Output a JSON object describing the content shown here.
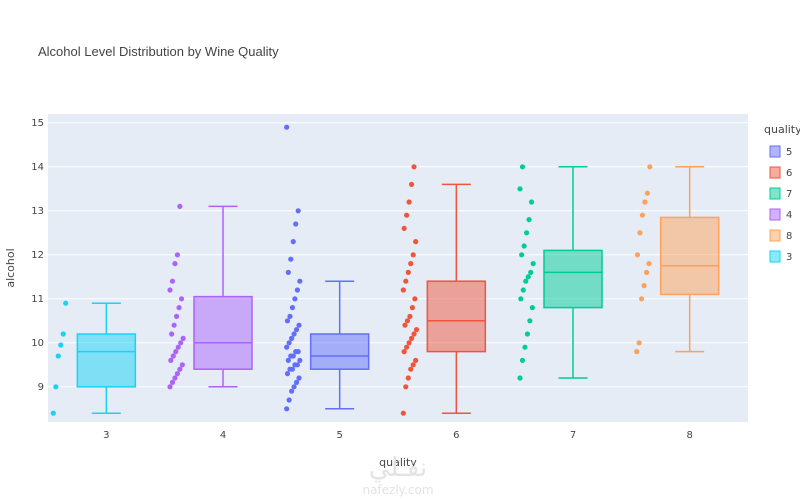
{
  "chart_data": {
    "type": "box",
    "title": "Alcohol Level Distribution by Wine Quality",
    "xlabel": "quality",
    "ylabel": "alcohol",
    "categories": [
      "3",
      "4",
      "5",
      "6",
      "7",
      "8"
    ],
    "ylim": [
      8.2,
      15.2
    ],
    "yticks": [
      9,
      10,
      11,
      12,
      13,
      14,
      15
    ],
    "grid": true,
    "legend": {
      "title": "quality",
      "position": "right",
      "entries": [
        "5",
        "6",
        "7",
        "4",
        "8",
        "3"
      ]
    },
    "series": [
      {
        "name": "3",
        "color": "#19d3f3",
        "min": 8.4,
        "q1": 9.0,
        "median": 9.8,
        "q3": 10.2,
        "max": 10.9,
        "points": [
          8.4,
          9.0,
          9.7,
          9.95,
          10.2,
          10.9
        ]
      },
      {
        "name": "4",
        "color": "#ab63fa",
        "min": 9.0,
        "q1": 9.4,
        "median": 10.0,
        "q3": 11.05,
        "max": 13.1,
        "points": [
          9.0,
          9.1,
          9.2,
          9.3,
          9.4,
          9.5,
          9.6,
          9.7,
          9.8,
          9.9,
          10.0,
          10.1,
          10.2,
          10.4,
          10.6,
          10.8,
          11.0,
          11.2,
          11.4,
          11.8,
          12.0,
          13.1
        ]
      },
      {
        "name": "5",
        "color": "#636efa",
        "min": 8.5,
        "q1": 9.4,
        "median": 9.7,
        "q3": 10.2,
        "max": 11.4,
        "points": [
          8.5,
          8.7,
          8.9,
          9.0,
          9.1,
          9.2,
          9.3,
          9.4,
          9.4,
          9.5,
          9.5,
          9.6,
          9.6,
          9.7,
          9.7,
          9.8,
          9.8,
          9.9,
          10.0,
          10.1,
          10.2,
          10.3,
          10.4,
          10.5,
          10.6,
          10.8,
          11.0,
          11.2,
          11.4,
          11.6,
          11.9,
          12.3,
          12.7,
          13.0,
          14.9
        ]
      },
      {
        "name": "6",
        "color": "#ef553b",
        "min": 8.4,
        "q1": 9.8,
        "median": 10.5,
        "q3": 11.4,
        "max": 13.6,
        "points": [
          8.4,
          9.0,
          9.2,
          9.4,
          9.5,
          9.6,
          9.8,
          9.9,
          10.0,
          10.1,
          10.2,
          10.3,
          10.4,
          10.5,
          10.6,
          10.8,
          11.0,
          11.2,
          11.4,
          11.6,
          11.8,
          12.0,
          12.3,
          12.6,
          12.9,
          13.2,
          13.6,
          14.0
        ]
      },
      {
        "name": "7",
        "color": "#00cc96",
        "min": 9.2,
        "q1": 10.8,
        "median": 11.6,
        "q3": 12.1,
        "max": 14.0,
        "points": [
          9.2,
          9.6,
          9.9,
          10.2,
          10.5,
          10.8,
          11.0,
          11.2,
          11.4,
          11.5,
          11.6,
          11.8,
          12.0,
          12.2,
          12.5,
          12.8,
          13.2,
          13.5,
          14.0
        ]
      },
      {
        "name": "8",
        "color": "#ffa15a",
        "min": 9.8,
        "q1": 11.1,
        "median": 11.75,
        "q3": 12.85,
        "max": 14.0,
        "points": [
          9.8,
          10.0,
          11.0,
          11.3,
          11.6,
          11.8,
          12.0,
          12.5,
          12.9,
          13.2,
          13.4,
          14.0
        ]
      }
    ]
  },
  "watermark": {
    "text_ar": "نفـلي",
    "text_en": "nafezly.com"
  }
}
